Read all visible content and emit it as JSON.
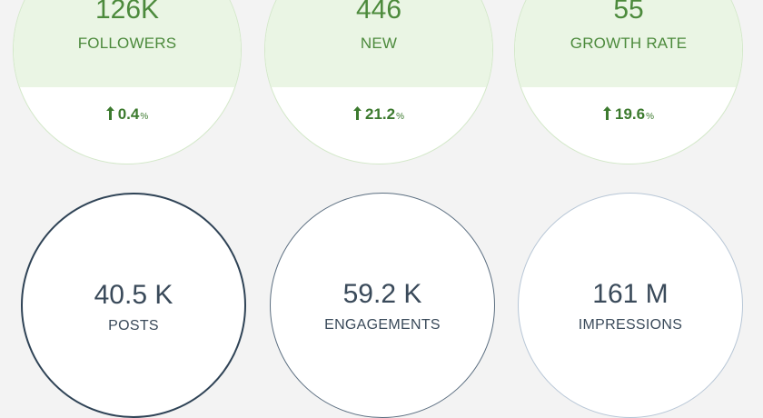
{
  "growth_stats": [
    {
      "value": "126K",
      "label": "FOLLOWERS",
      "change": "0.4",
      "unit": "%",
      "icon": "arrow-up-icon"
    },
    {
      "value": "446",
      "label": "NEW",
      "change": "21.2",
      "unit": "%",
      "icon": "arrow-up-icon"
    },
    {
      "value": "55",
      "label": "GROWTH RATE",
      "change": "19.6",
      "unit": "%",
      "icon": "arrow-up-icon"
    }
  ],
  "totals": [
    {
      "value": "40.5 K",
      "label": "POSTS"
    },
    {
      "value": "59.2 K",
      "label": "ENGAGEMENTS"
    },
    {
      "value": "161 M",
      "label": "IMPRESSIONS"
    }
  ],
  "colors": {
    "background": "#f3f3f3",
    "green_text": "#4c8a3c",
    "green_fill": "#eaf5e4",
    "green_border": "#d3e8c9",
    "slate_text": "#3a4a5a",
    "slate_border_dark": "#2f4356",
    "slate_border_mid": "#5b6e80",
    "slate_border_light": "#b7c6d6"
  }
}
